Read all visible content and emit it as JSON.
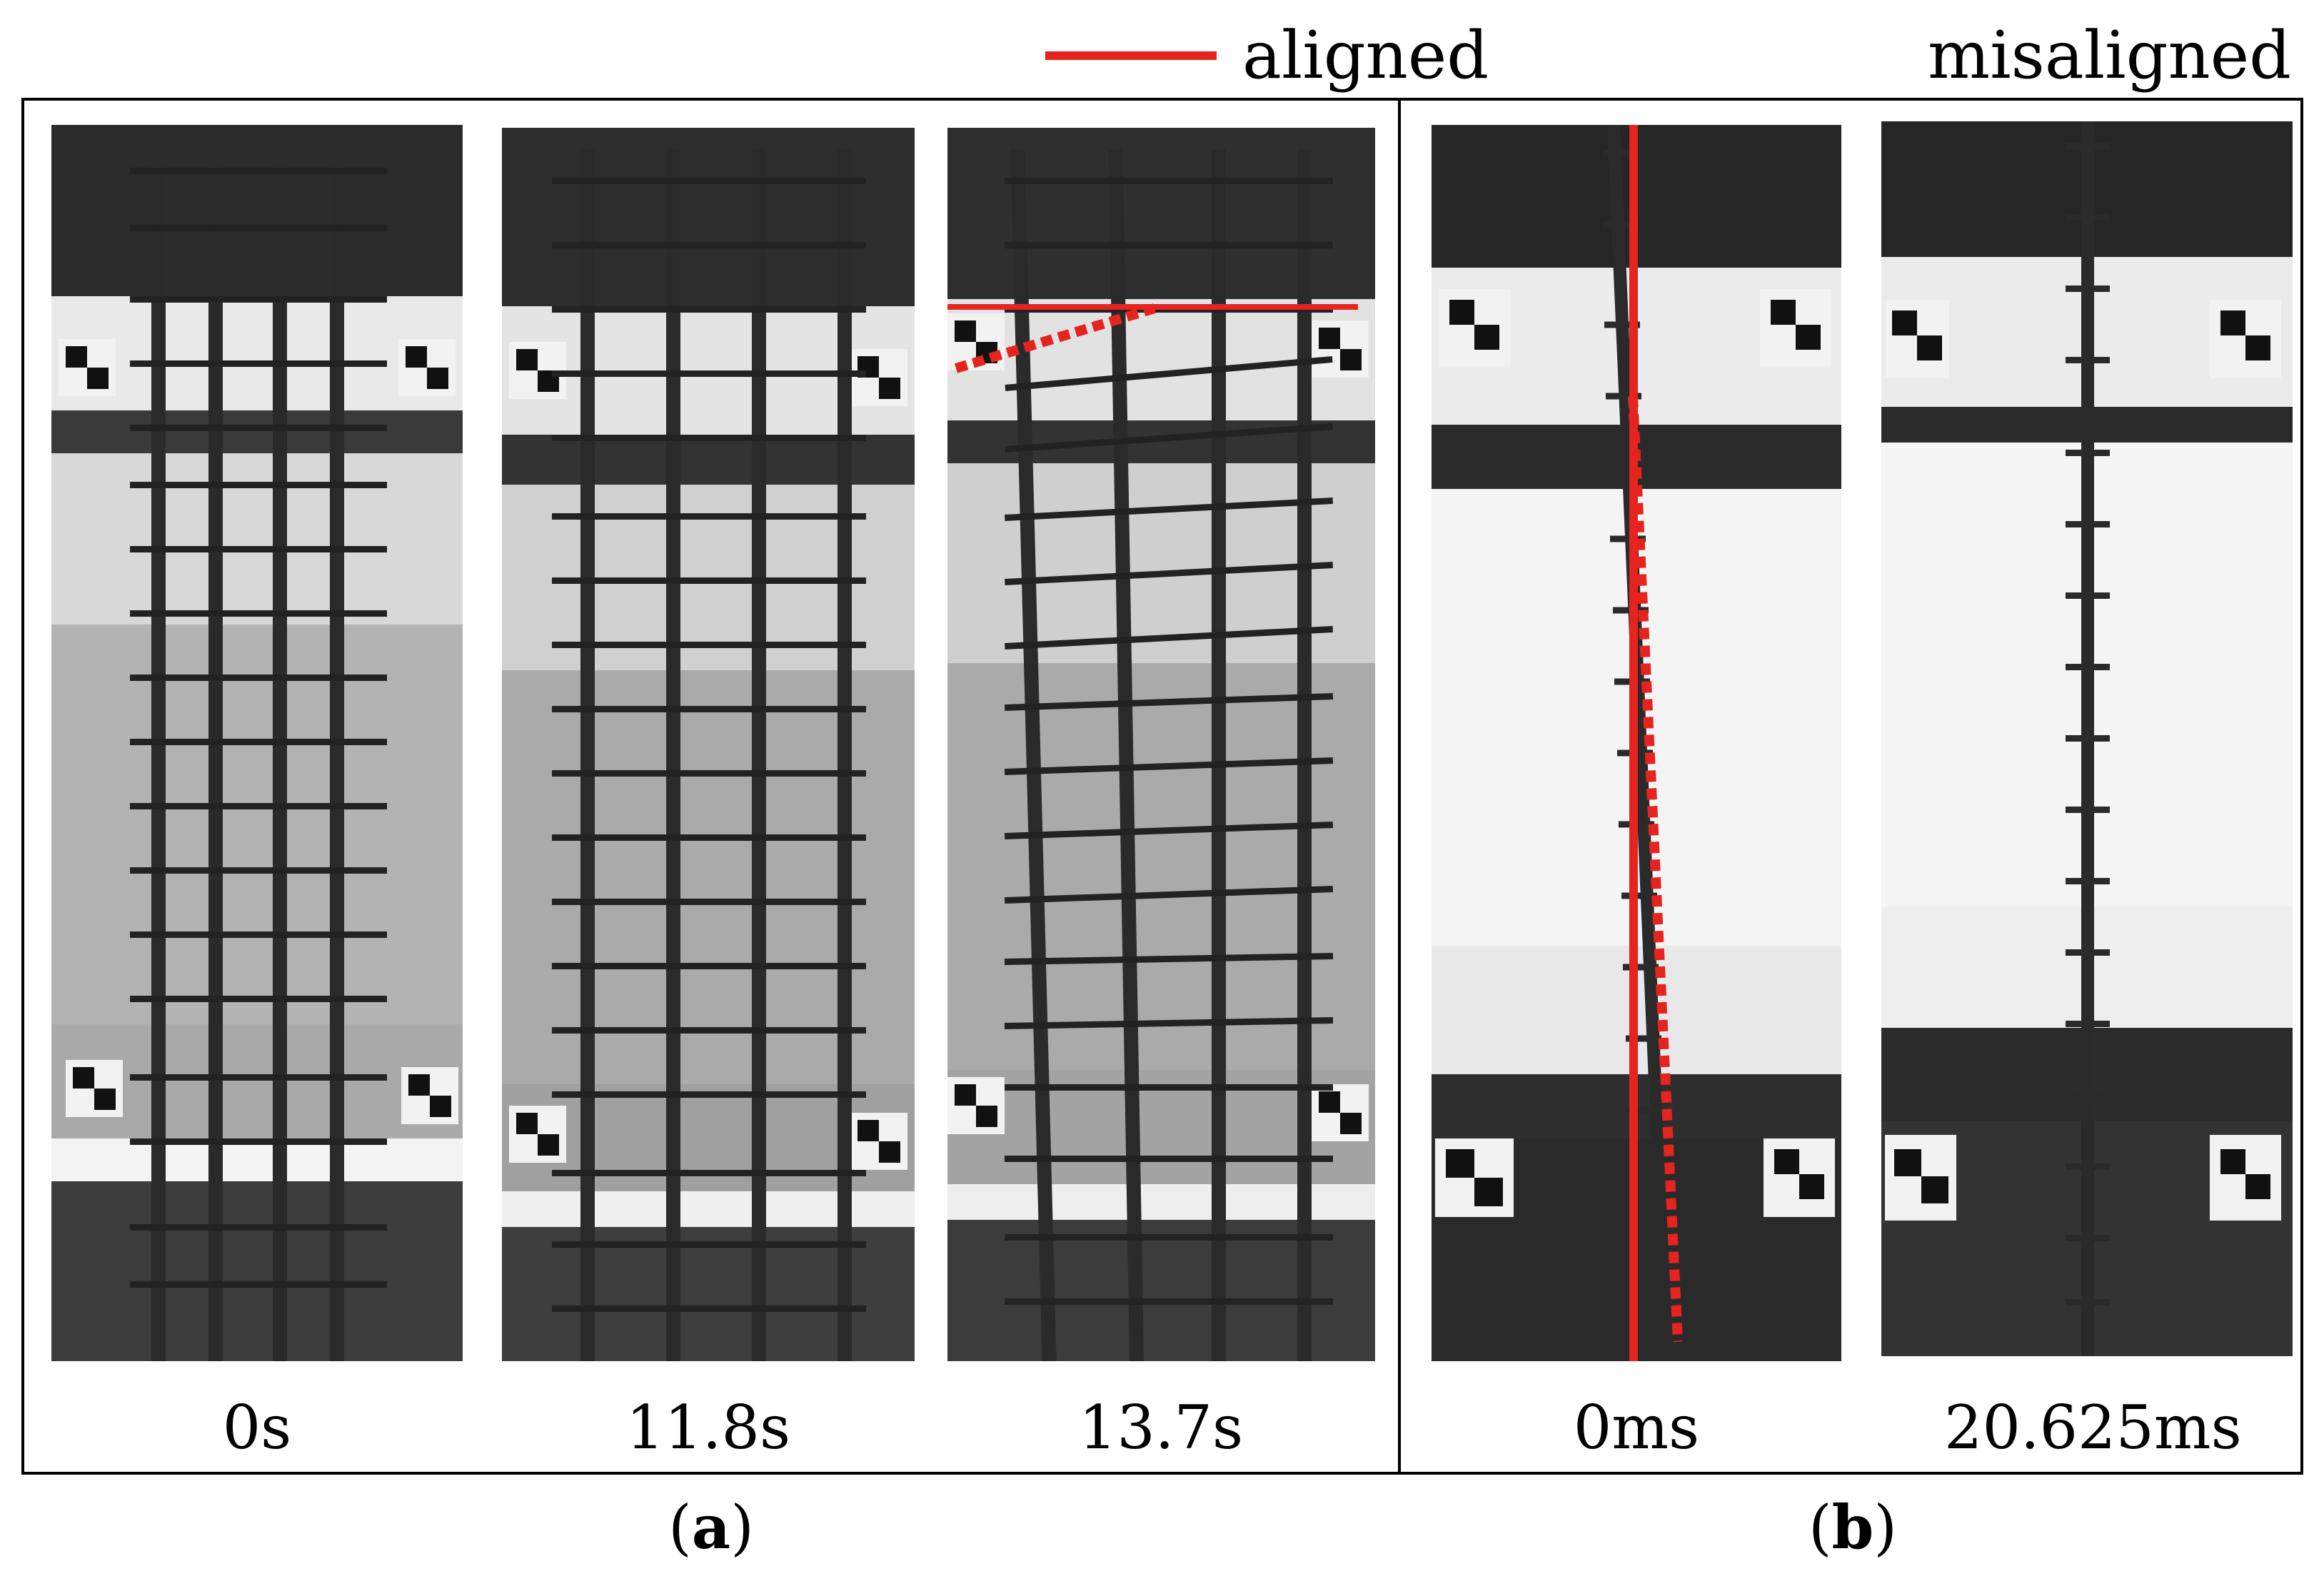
{
  "legend": {
    "aligned_label": "aligned",
    "misaligned_label": "misaligned",
    "line_color": "#e5241f"
  },
  "panel_a": {
    "letter": "a",
    "frames": [
      {
        "time": "0s"
      },
      {
        "time": "11.8s"
      },
      {
        "time": "13.7s"
      }
    ]
  },
  "panel_b": {
    "letter": "b",
    "frames": [
      {
        "time": "0ms"
      },
      {
        "time": "20.625ms"
      }
    ]
  }
}
